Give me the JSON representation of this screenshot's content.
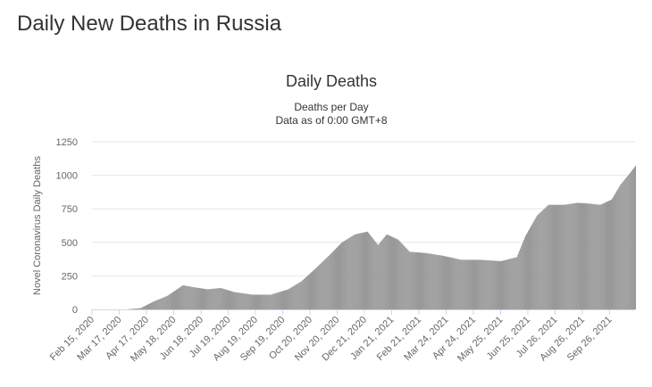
{
  "page": {
    "heading": "Daily New Deaths in Russia"
  },
  "chart_data": {
    "type": "bar",
    "title": "Daily Deaths",
    "subtitle_lines": [
      "Deaths per Day",
      "Data as of 0:00 GMT+8"
    ],
    "ylabel": "Novel Coronavirus Daily Deaths",
    "xlabel": "",
    "ylim": [
      0,
      1250
    ],
    "yticks": [
      0,
      250,
      500,
      750,
      1000,
      1250
    ],
    "grid": true,
    "legend": "none",
    "bar_color": "#999999",
    "x_tick_labels": [
      "Feb 15, 2020",
      "Mar 17, 2020",
      "Apr 17, 2020",
      "May 18, 2020",
      "Jun 18, 2020",
      "Jul 19, 2020",
      "Aug 19, 2020",
      "Sep 19, 2020",
      "Oct 20, 2020",
      "Nov 20, 2020",
      "Dec 21, 2020",
      "Jan 21, 2021",
      "Feb 21, 2021",
      "Mar 24, 2021",
      "Apr 24, 2021",
      "May 25, 2021",
      "Jun 25, 2021",
      "Jul 26, 2021",
      "Aug 26, 2021",
      "Sep 26, 2021"
    ],
    "x_range": [
      "Feb 15, 2020",
      "Oct 25, 2021"
    ],
    "series": [
      {
        "values_description": "approximate daily deaths, sampled at key dates",
        "points": [
          {
            "date": "Feb 15, 2020",
            "value": 0
          },
          {
            "date": "Mar 25, 2020",
            "value": 0
          },
          {
            "date": "Apr 10, 2020",
            "value": 10
          },
          {
            "date": "Apr 25, 2020",
            "value": 60
          },
          {
            "date": "May 10, 2020",
            "value": 100
          },
          {
            "date": "May 28, 2020",
            "value": 180
          },
          {
            "date": "Jun 10, 2020",
            "value": 165
          },
          {
            "date": "Jun 25, 2020",
            "value": 150
          },
          {
            "date": "Jul 10, 2020",
            "value": 160
          },
          {
            "date": "Jul 25, 2020",
            "value": 130
          },
          {
            "date": "Aug 15, 2020",
            "value": 110
          },
          {
            "date": "Sep 5, 2020",
            "value": 110
          },
          {
            "date": "Sep 25, 2020",
            "value": 150
          },
          {
            "date": "Oct 10, 2020",
            "value": 210
          },
          {
            "date": "Oct 25, 2020",
            "value": 300
          },
          {
            "date": "Nov 10, 2020",
            "value": 400
          },
          {
            "date": "Nov 25, 2020",
            "value": 500
          },
          {
            "date": "Dec 10, 2020",
            "value": 560
          },
          {
            "date": "Dec 24, 2020",
            "value": 580
          },
          {
            "date": "Jan 5, 2021",
            "value": 480
          },
          {
            "date": "Jan 15, 2021",
            "value": 560
          },
          {
            "date": "Jan 28, 2021",
            "value": 520
          },
          {
            "date": "Feb 10, 2021",
            "value": 430
          },
          {
            "date": "Mar 1, 2021",
            "value": 420
          },
          {
            "date": "Mar 20, 2021",
            "value": 400
          },
          {
            "date": "Apr 10, 2021",
            "value": 370
          },
          {
            "date": "May 1, 2021",
            "value": 370
          },
          {
            "date": "May 25, 2021",
            "value": 360
          },
          {
            "date": "Jun 12, 2021",
            "value": 390
          },
          {
            "date": "Jun 22, 2021",
            "value": 550
          },
          {
            "date": "Jul 5, 2021",
            "value": 700
          },
          {
            "date": "Jul 18, 2021",
            "value": 780
          },
          {
            "date": "Aug 5, 2021",
            "value": 780
          },
          {
            "date": "Aug 20, 2021",
            "value": 795
          },
          {
            "date": "Sep 1, 2021",
            "value": 790
          },
          {
            "date": "Sep 15, 2021",
            "value": 780
          },
          {
            "date": "Sep 28, 2021",
            "value": 820
          },
          {
            "date": "Oct 8, 2021",
            "value": 930
          },
          {
            "date": "Oct 18, 2021",
            "value": 1010
          },
          {
            "date": "Oct 25, 2021",
            "value": 1070
          }
        ]
      }
    ]
  }
}
